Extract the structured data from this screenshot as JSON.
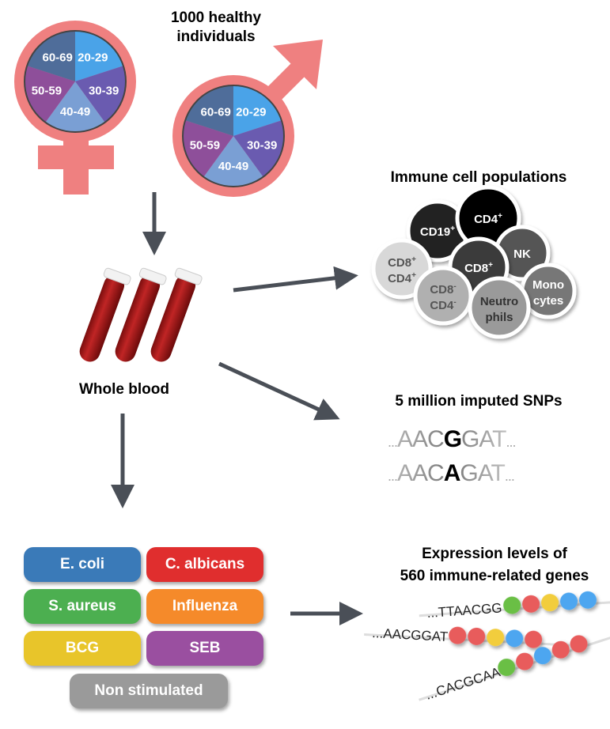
{
  "population": {
    "title_line1": "1000 healthy",
    "title_line2": "individuals",
    "age_groups": [
      "20-29",
      "30-39",
      "40-49",
      "50-59",
      "60-69"
    ],
    "age_colors": [
      "#4aa3e8",
      "#6a5bb0",
      "#7a9fd4",
      "#8e4f9a",
      "#4f6d9a"
    ],
    "symbol_color": "#ef8080"
  },
  "blood": {
    "label": "Whole blood",
    "tube_color": "#b01e1e"
  },
  "immune": {
    "title": "Immune cell populations",
    "cells": [
      {
        "line1": "CD19",
        "sup1": "+",
        "line2": "",
        "sup2": "",
        "fill": "#222222",
        "text": "#ffffff"
      },
      {
        "line1": "CD4",
        "sup1": "+",
        "line2": "",
        "sup2": "",
        "fill": "#000000",
        "text": "#ffffff"
      },
      {
        "line1": "NK",
        "sup1": "",
        "line2": "",
        "sup2": "",
        "fill": "#555555",
        "text": "#ffffff"
      },
      {
        "line1": "CD8",
        "sup1": "+",
        "line2": "",
        "sup2": "",
        "fill": "#3a3a3a",
        "text": "#ffffff"
      },
      {
        "line1": "CD8",
        "sup1": "+",
        "line2": "CD4",
        "sup2": "+",
        "fill": "#d8d8d8",
        "text": "#555555"
      },
      {
        "line1": "CD8",
        "sup1": "-",
        "line2": "CD4",
        "sup2": "-",
        "fill": "#b0b0b0",
        "text": "#555555"
      },
      {
        "line1": "Mono",
        "sup1": "",
        "line2": "cytes",
        "sup2": "",
        "fill": "#777777",
        "text": "#ffffff"
      },
      {
        "line1": "Neutro",
        "sup1": "",
        "line2": "phils",
        "sup2": "",
        "fill": "#9a9a9a",
        "text": "#333333"
      }
    ]
  },
  "snps": {
    "title": "5 million imputed SNPs",
    "seq1": {
      "pre": "AAC",
      "alt": "G",
      "post": "GAT"
    },
    "seq2": {
      "pre": "AAC",
      "alt": "A",
      "post": "GAT"
    },
    "ellipsis": "..."
  },
  "stimuli": {
    "items": [
      {
        "label": "E. coli",
        "color": "#3a7ab8"
      },
      {
        "label": "C. albicans",
        "color": "#e02e2e"
      },
      {
        "label": "S. aureus",
        "color": "#4caf50"
      },
      {
        "label": "Influenza",
        "color": "#f58a2a"
      },
      {
        "label": "BCG",
        "color": "#e8c52a"
      },
      {
        "label": "SEB",
        "color": "#9a4fa0"
      },
      {
        "label": "Non stimulated",
        "color": "#9a9a9a"
      }
    ]
  },
  "expression": {
    "title_line1": "Expression levels of",
    "title_line2": "560 immune-related genes",
    "strands": [
      {
        "seq": "...TTAACGG",
        "beads": [
          "#6abf45",
          "#e85c5c",
          "#f2cd3c",
          "#4ea6f0",
          "#4ea6f0"
        ]
      },
      {
        "seq": "...AACGGAT",
        "beads": [
          "#e85c5c",
          "#e85c5c",
          "#f2cd3c",
          "#4ea6f0",
          "#e85c5c"
        ]
      },
      {
        "seq": "...CACGCAA",
        "beads": [
          "#6abf45",
          "#e85c5c",
          "#4ea6f0",
          "#e85c5c",
          "#e85c5c"
        ]
      }
    ]
  },
  "arrow_color": "#4a4f57"
}
